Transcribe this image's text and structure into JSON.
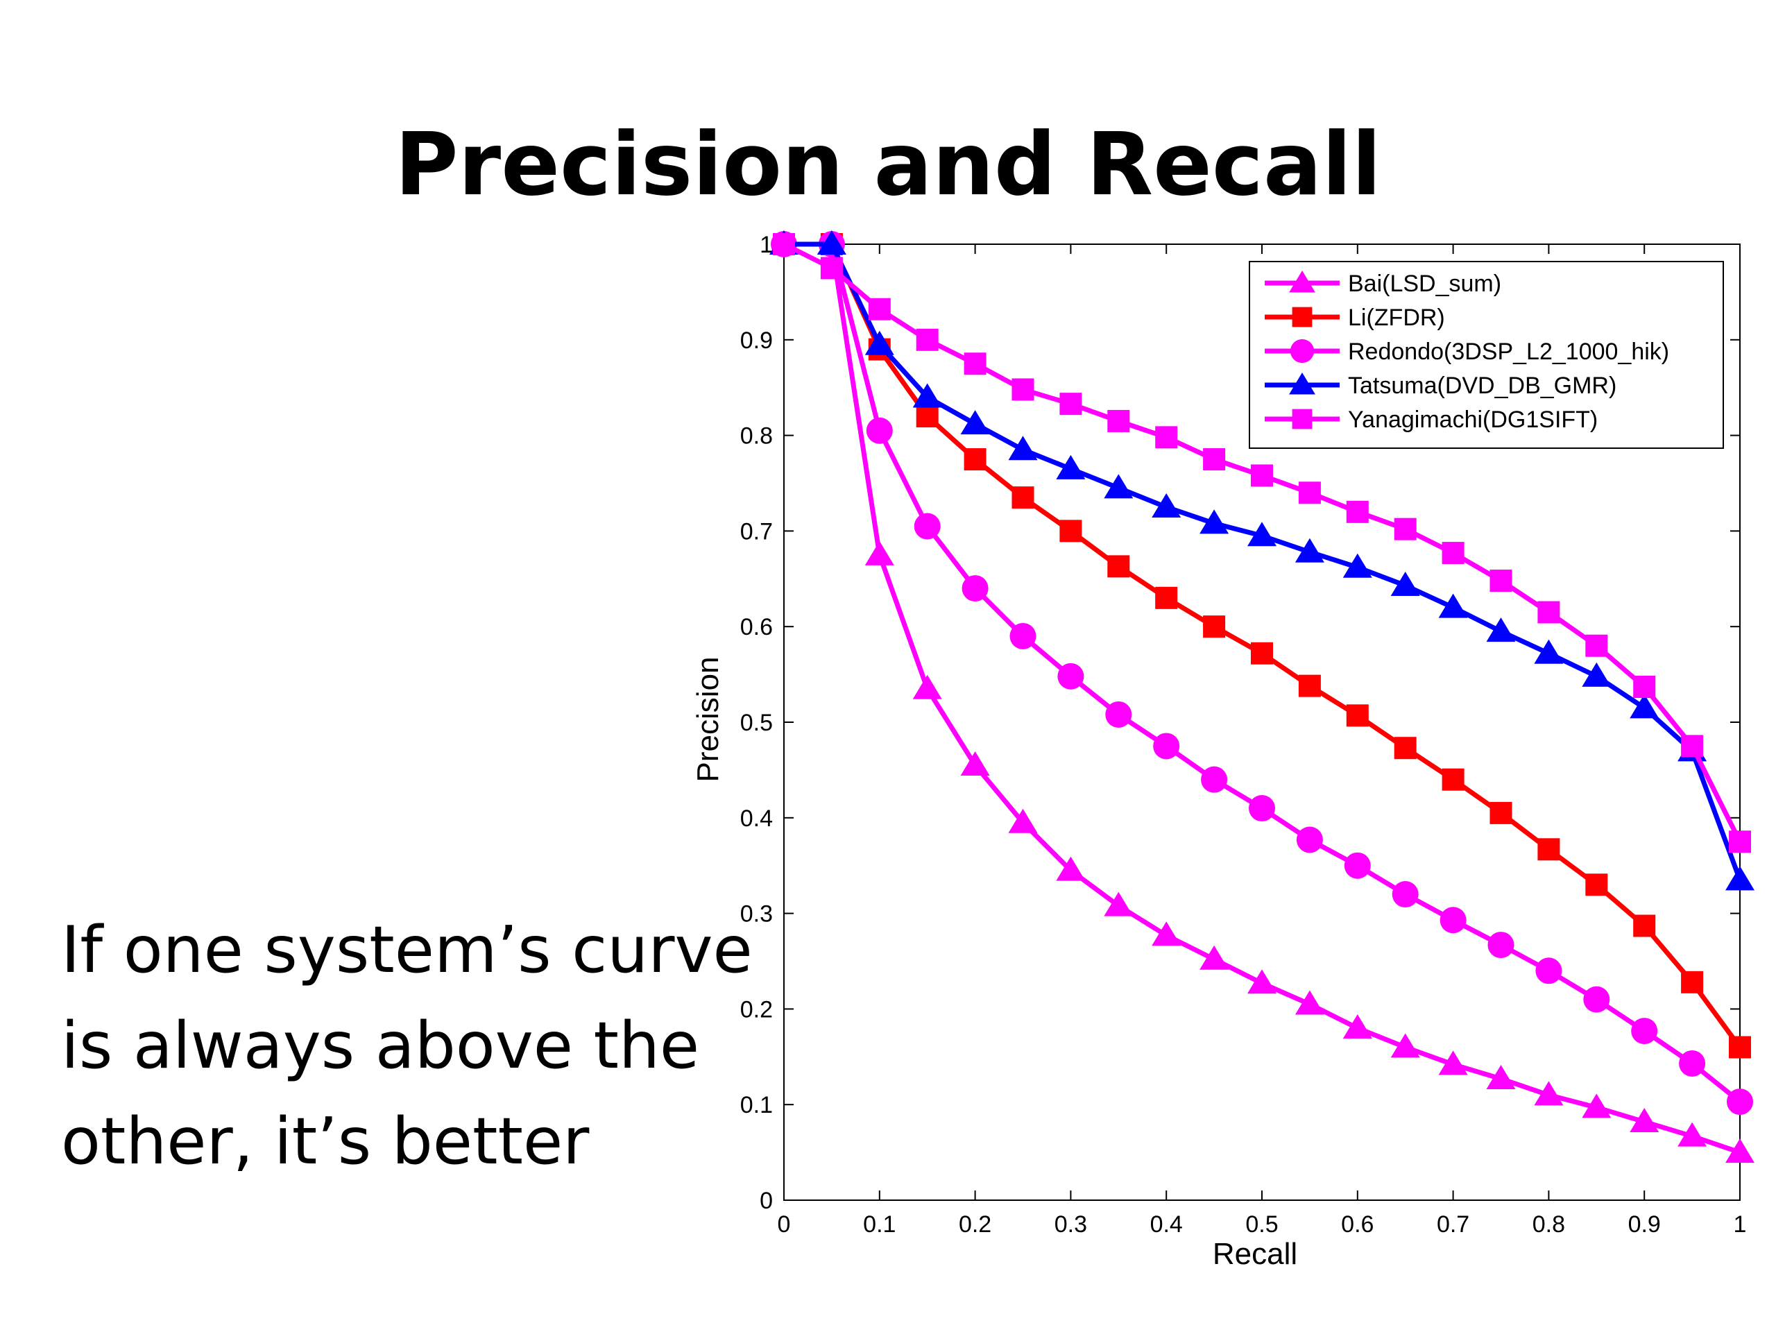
{
  "slide": {
    "title": "Precision and Recall",
    "body_lines": [
      "If one system’s curve",
      "is always above the",
      "other, it’s better"
    ]
  },
  "chart_data": {
    "type": "line",
    "title": "",
    "xlabel": "Recall",
    "ylabel": "Precision",
    "xlim": [
      0,
      1
    ],
    "ylim": [
      0,
      1
    ],
    "xticks": [
      "0",
      "0.1",
      "0.2",
      "0.3",
      "0.4",
      "0.5",
      "0.6",
      "0.7",
      "0.8",
      "0.9",
      "1"
    ],
    "yticks": [
      "0",
      "0.1",
      "0.2",
      "0.3",
      "0.4",
      "0.5",
      "0.6",
      "0.7",
      "0.8",
      "0.9",
      "1"
    ],
    "grid": false,
    "legend_position": "top-right",
    "x": [
      0,
      0.05,
      0.1,
      0.15,
      0.2,
      0.25,
      0.3,
      0.35,
      0.4,
      0.45,
      0.5,
      0.55,
      0.6,
      0.65,
      0.7,
      0.75,
      0.8,
      0.85,
      0.9,
      0.95,
      1.0
    ],
    "series": [
      {
        "name": "Bai(LSD_sum)",
        "color": "#ff00ff",
        "marker": "triangle",
        "values": [
          1.0,
          1.0,
          0.675,
          0.535,
          0.455,
          0.395,
          0.345,
          0.308,
          0.277,
          0.252,
          0.227,
          0.205,
          0.18,
          0.16,
          0.142,
          0.127,
          0.11,
          0.097,
          0.082,
          0.067,
          0.05
        ]
      },
      {
        "name": "Li(ZFDR)",
        "color": "#ff0000",
        "marker": "square",
        "values": [
          1.0,
          1.0,
          0.89,
          0.82,
          0.775,
          0.735,
          0.7,
          0.663,
          0.63,
          0.6,
          0.572,
          0.538,
          0.507,
          0.473,
          0.44,
          0.405,
          0.367,
          0.33,
          0.287,
          0.228,
          0.16
        ]
      },
      {
        "name": "Redondo(3DSP_L2_1000_hik)",
        "color": "#ff00ff",
        "marker": "circle",
        "values": [
          1.0,
          1.0,
          0.805,
          0.705,
          0.64,
          0.59,
          0.548,
          0.508,
          0.475,
          0.44,
          0.41,
          0.377,
          0.35,
          0.32,
          0.293,
          0.267,
          0.24,
          0.21,
          0.177,
          0.143,
          0.103
        ]
      },
      {
        "name": "Tatsuma(DVD_DB_GMR)",
        "color": "#0000ff",
        "marker": "triangle",
        "values": [
          1.0,
          1.0,
          0.895,
          0.84,
          0.812,
          0.785,
          0.765,
          0.745,
          0.725,
          0.708,
          0.695,
          0.678,
          0.662,
          0.643,
          0.62,
          0.595,
          0.572,
          0.548,
          0.515,
          0.47,
          0.335
        ]
      },
      {
        "name": "Yanagimachi(DG1SIFT)",
        "color": "#ff00ff",
        "marker": "square",
        "values": [
          1.0,
          0.975,
          0.932,
          0.9,
          0.875,
          0.848,
          0.833,
          0.815,
          0.798,
          0.775,
          0.758,
          0.74,
          0.72,
          0.702,
          0.677,
          0.648,
          0.615,
          0.58,
          0.537,
          0.475,
          0.375
        ]
      }
    ]
  }
}
